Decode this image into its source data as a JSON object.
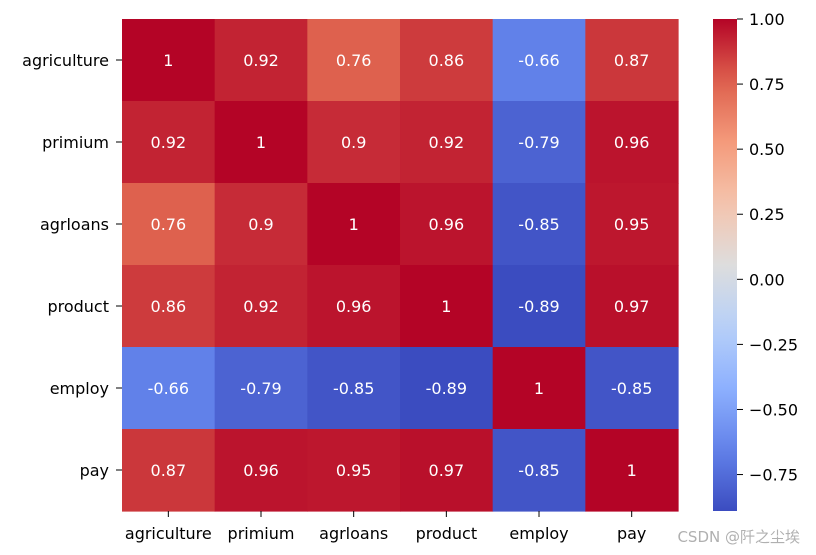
{
  "chart_data": {
    "type": "heatmap",
    "title": "",
    "xlabel": "",
    "ylabel": "",
    "rows": [
      "agriculture",
      "primium",
      "agrloans",
      "product",
      "employ",
      "pay"
    ],
    "columns": [
      "agriculture",
      "primium",
      "agrloans",
      "product",
      "employ",
      "pay"
    ],
    "values": [
      [
        1,
        0.92,
        0.76,
        0.86,
        -0.66,
        0.87
      ],
      [
        0.92,
        1,
        0.9,
        0.92,
        -0.79,
        0.96
      ],
      [
        0.76,
        0.9,
        1,
        0.96,
        -0.85,
        0.95
      ],
      [
        0.86,
        0.92,
        0.96,
        1,
        -0.89,
        0.97
      ],
      [
        -0.66,
        -0.79,
        -0.85,
        -0.89,
        1,
        -0.85
      ],
      [
        0.87,
        0.96,
        0.95,
        0.97,
        -0.85,
        1
      ]
    ],
    "colormap": "coolwarm",
    "vmin": -0.89,
    "vmax": 1,
    "colorbar_ticks": [
      1.0,
      0.75,
      0.5,
      0.25,
      0.0,
      -0.25,
      -0.5,
      -0.75
    ],
    "colorbar_tick_labels": [
      "1.00",
      "0.75",
      "0.50",
      "0.25",
      "0.00",
      "−0.25",
      "−0.50",
      "−0.75"
    ]
  },
  "watermark": "CSDN @阡之尘埃"
}
